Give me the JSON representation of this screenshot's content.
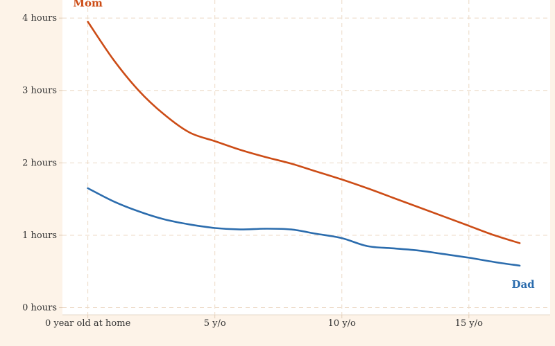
{
  "chart_data": {
    "type": "line",
    "title": "",
    "xlabel": "",
    "ylabel": "",
    "xlim": [
      -1,
      18.2
    ],
    "ylim": [
      -0.1,
      4.25
    ],
    "x_ticks": [
      {
        "value": 0,
        "label": "0 year old at home"
      },
      {
        "value": 5,
        "label": "5 y/o"
      },
      {
        "value": 10,
        "label": "10 y/o"
      },
      {
        "value": 15,
        "label": "15 y/o"
      }
    ],
    "y_ticks": [
      {
        "value": 0,
        "label": "0 hours"
      },
      {
        "value": 1,
        "label": "1 hours"
      },
      {
        "value": 2,
        "label": "2 hours"
      },
      {
        "value": 3,
        "label": "3 hours"
      },
      {
        "value": 4,
        "label": "4 hours"
      }
    ],
    "grid": true,
    "legend": "direct labels",
    "series": [
      {
        "name": "Mom",
        "color": "#cc4c16",
        "x": [
          0,
          1,
          2,
          3,
          4,
          5,
          6,
          7,
          8,
          9,
          10,
          11,
          12,
          13,
          14,
          15,
          16,
          17
        ],
        "y": [
          3.95,
          3.43,
          3.0,
          2.67,
          2.42,
          2.3,
          2.18,
          2.08,
          1.99,
          1.88,
          1.77,
          1.65,
          1.52,
          1.39,
          1.26,
          1.13,
          1.0,
          0.89
        ]
      },
      {
        "name": "Dad",
        "color": "#2b6cad",
        "x": [
          0,
          1,
          2,
          3,
          4,
          5,
          6,
          7,
          8,
          9,
          10,
          11,
          12,
          13,
          14,
          15,
          16,
          17
        ],
        "y": [
          1.65,
          1.47,
          1.33,
          1.22,
          1.15,
          1.1,
          1.08,
          1.09,
          1.08,
          1.02,
          0.96,
          0.85,
          0.82,
          0.79,
          0.74,
          0.69,
          0.63,
          0.58
        ]
      }
    ]
  }
}
